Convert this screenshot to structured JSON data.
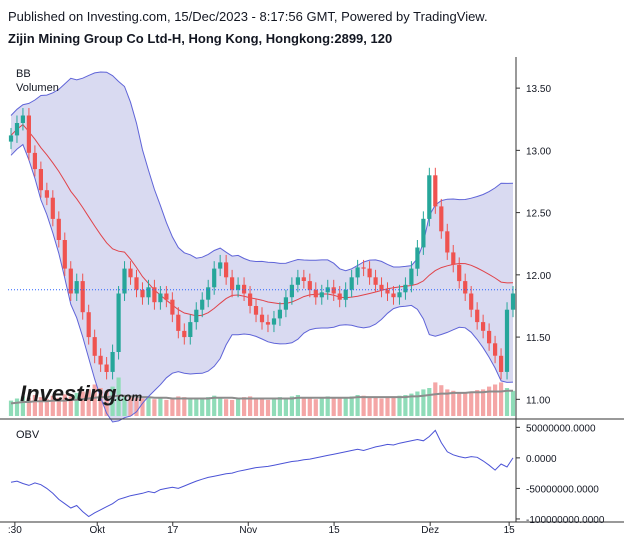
{
  "header": {
    "published": "Published on Investing.com, 15/Dec/2023 - 8:17:56 GMT, Powered by TradingView.",
    "instrument": "Zijin Mining Group Co Ltd-H, Hong Kong, Hongkong:2899, 120"
  },
  "watermark": {
    "brand": "Investing",
    "suffix": ".com"
  },
  "colors": {
    "up": "#26a69a",
    "down": "#ef5350",
    "band_line": "#5f64d8",
    "band_fill": "#d9daf1",
    "basis": "#e0434a",
    "obv": "#4b53d6",
    "volume_up": "#8fdcb8",
    "volume_down": "#f4a6a6"
  },
  "chart_data": [
    {
      "type": "candlestick",
      "indicators_label": "BB",
      "volume_label": "Volumen",
      "ylim": [
        10.85,
        13.75
      ],
      "y_ticks": [
        "13.50",
        "13.00",
        "12.50",
        "12.00",
        "11.50",
        "11.00"
      ],
      "x_ticks": [
        ":30",
        "Okt",
        "17",
        "Nov",
        "15",
        "Dez",
        "15"
      ],
      "last_price": 11.88,
      "close": [
        13.12,
        13.22,
        13.28,
        12.98,
        12.85,
        12.68,
        12.62,
        12.45,
        12.28,
        12.05,
        11.85,
        11.95,
        11.7,
        11.5,
        11.35,
        11.28,
        11.22,
        11.38,
        11.85,
        12.05,
        11.98,
        11.88,
        11.82,
        11.9,
        11.78,
        11.85,
        11.8,
        11.68,
        11.55,
        11.5,
        11.62,
        11.72,
        11.8,
        11.9,
        12.05,
        12.1,
        11.98,
        11.88,
        11.92,
        11.85,
        11.75,
        11.68,
        11.62,
        11.6,
        11.65,
        11.72,
        11.82,
        11.92,
        11.98,
        11.95,
        11.88,
        11.82,
        11.86,
        11.9,
        11.85,
        11.8,
        11.88,
        11.98,
        12.06,
        12.05,
        11.98,
        11.92,
        11.88,
        11.85,
        11.82,
        11.86,
        11.92,
        12.05,
        12.22,
        12.45,
        12.8,
        12.55,
        12.35,
        12.18,
        12.08,
        11.95,
        11.85,
        11.72,
        11.62,
        11.55,
        11.45,
        11.35,
        11.22,
        11.72,
        11.85
      ],
      "volume_scale_max": 100,
      "volume": [
        22,
        25,
        28,
        26,
        30,
        27,
        24,
        29,
        26,
        31,
        28,
        33,
        35,
        38,
        45,
        40,
        36,
        42,
        55,
        30,
        28,
        26,
        25,
        27,
        24,
        26,
        23,
        25,
        28,
        27,
        26,
        24,
        25,
        27,
        29,
        26,
        24,
        23,
        25,
        27,
        28,
        26,
        24,
        23,
        25,
        27,
        26,
        28,
        30,
        27,
        25,
        24,
        26,
        28,
        27,
        25,
        26,
        28,
        30,
        29,
        27,
        26,
        25,
        27,
        28,
        29,
        30,
        32,
        35,
        38,
        40,
        48,
        44,
        38,
        36,
        34,
        33,
        35,
        37,
        38,
        42,
        45,
        48,
        40,
        36
      ],
      "volume_average": [
        18,
        19,
        20,
        20,
        21,
        21,
        21,
        22,
        22,
        22,
        23,
        23,
        24,
        25,
        26,
        27,
        27,
        28,
        29,
        29,
        28,
        28,
        27,
        27,
        26,
        26,
        26,
        25,
        25,
        25,
        25,
        25,
        25,
        25,
        26,
        26,
        26,
        26,
        25,
        25,
        25,
        25,
        25,
        25,
        25,
        25,
        25,
        25,
        26,
        26,
        26,
        26,
        26,
        26,
        26,
        26,
        26,
        26,
        27,
        27,
        27,
        27,
        27,
        27,
        27,
        27,
        27,
        28,
        28,
        29,
        30,
        31,
        32,
        32,
        33,
        33,
        33,
        34,
        34,
        34,
        35,
        35,
        35,
        36,
        36
      ]
    },
    {
      "type": "line",
      "label": "OBV",
      "y_ticks": [
        "50000000.0000",
        "0.0000",
        "-50000000.0000",
        "-100000000.0000"
      ],
      "ylim": [
        -105000000,
        62000000
      ],
      "values": [
        -40000000,
        -38000000,
        -42000000,
        -45000000,
        -41000000,
        -44000000,
        -50000000,
        -58000000,
        -68000000,
        -75000000,
        -82000000,
        -78000000,
        -88000000,
        -96000000,
        -90000000,
        -85000000,
        -80000000,
        -75000000,
        -68000000,
        -65000000,
        -62000000,
        -60000000,
        -58000000,
        -55000000,
        -57000000,
        -52000000,
        -50000000,
        -48000000,
        -50000000,
        -46000000,
        -42000000,
        -38000000,
        -35000000,
        -32000000,
        -30000000,
        -28000000,
        -26000000,
        -25000000,
        -22000000,
        -20000000,
        -18000000,
        -16000000,
        -15000000,
        -14000000,
        -12000000,
        -10000000,
        -8000000,
        -6000000,
        -5000000,
        -3000000,
        -2000000,
        0,
        2000000,
        4000000,
        6000000,
        8000000,
        10000000,
        12000000,
        14000000,
        12000000,
        15000000,
        18000000,
        20000000,
        22000000,
        21000000,
        24000000,
        26000000,
        28000000,
        30000000,
        28000000,
        35000000,
        45000000,
        25000000,
        10000000,
        5000000,
        2000000,
        0,
        2000000,
        1000000,
        -5000000,
        -12000000,
        -20000000,
        -10000000,
        -15000000,
        0
      ]
    }
  ]
}
